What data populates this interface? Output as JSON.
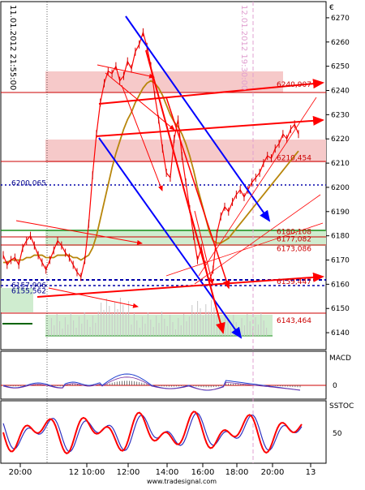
{
  "page": {
    "bg": "#ffffff",
    "footer": "www.tradesignal.com",
    "currency_symbol": "€"
  },
  "annotations": {
    "left_vertical": "11.01.2012 21:55:00",
    "mid_vertical": "12.01.2012 19:30:00"
  },
  "panels": {
    "macd": {
      "label": "MACD",
      "zero": "0"
    },
    "sstoc": {
      "label": "SSTOC",
      "level": "50"
    }
  },
  "chart_data": {
    "type": "line",
    "title": "",
    "xlabel": "",
    "ylabel": "",
    "ylim": [
      6133,
      6276
    ],
    "y_ticks": [
      6140,
      6150,
      6160,
      6170,
      6180,
      6190,
      6200,
      6210,
      6220,
      6230,
      6240,
      6250,
      6260,
      6270
    ],
    "x_tick_labels": [
      "20:00",
      "12 10:00",
      "12:00",
      "14:00",
      "16:00",
      "18:00",
      "20:00",
      "13"
    ],
    "level_labels": [
      {
        "text": "6240,907",
        "value": 6240.907
      },
      {
        "text": "6210,454",
        "value": 6210.454
      },
      {
        "text": "6200,065",
        "value": 6200.065
      },
      {
        "text": "6180,108",
        "value": 6180.108
      },
      {
        "text": "6177,082",
        "value": 6177.082
      },
      {
        "text": "6173,086",
        "value": 6173.086
      },
      {
        "text": "6159,447",
        "value": 6159.447
      },
      {
        "text": "6157,906",
        "value": 6157.906
      },
      {
        "text": "6155,562",
        "value": 6155.562
      },
      {
        "text": "6143,464",
        "value": 6143.464
      }
    ],
    "series": [
      {
        "values": [
          6172,
          6168,
          6170,
          6171,
          6168,
          6175,
          6178,
          6180,
          6176,
          6172,
          6169,
          6166,
          6170,
          6174,
          6178,
          6176,
          6173,
          6171,
          6168,
          6165,
          6163,
          6170,
          6185,
          6205,
          6222,
          6235,
          6243,
          6248,
          6247,
          6250,
          6244,
          6246,
          6252,
          6249,
          6256,
          6259,
          6264,
          6258,
          6250,
          6238,
          6228,
          6216,
          6206,
          6204,
          6220,
          6228,
          6213,
          6202,
          6191,
          6180,
          6170,
          6175,
          6168,
          6161,
          6166,
          6181,
          6188,
          6192,
          6190,
          6194,
          6197,
          6199,
          6196,
          6199,
          6202,
          6204,
          6206,
          6210,
          6213,
          6212,
          6216,
          6218,
          6222,
          6220,
          6224,
          6226,
          6222
        ]
      },
      {
        "values": [
          6169,
          6169,
          6170,
          6170,
          6170,
          6170,
          6171,
          6171,
          6172,
          6172,
          6172,
          6171,
          6171,
          6171,
          6172,
          6172,
          6172,
          6172,
          6171,
          6171,
          6170,
          6171,
          6172,
          6175,
          6180,
          6187,
          6194,
          6201,
          6208,
          6214,
          6219,
          6224,
          6228,
          6231,
          6235,
          6238,
          6241,
          6243,
          6244,
          6243,
          6241,
          6238,
          6234,
          6230,
          6227,
          6225,
          6222,
          6218,
          6213,
          6207,
          6200,
          6194,
          6188,
          6182,
          6178,
          6177,
          6177,
          6178,
          6179,
          6181,
          6183,
          6185,
          6187,
          6189,
          6191,
          6193,
          6195,
          6197,
          6199,
          6201,
          6203,
          6205,
          6207,
          6209,
          6211,
          6213,
          6215
        ]
      }
    ],
    "colors": {
      "price": "#ff0000",
      "ma": "#b8860b",
      "downtrend": "#0000ff",
      "resistance_band": "#f6c9c9",
      "support_band": "#cfeccf",
      "macd": "#1f3fcf",
      "signal": "#ff0000",
      "stoch_k": "#ff0000",
      "stoch_d": "#3030c0"
    }
  }
}
